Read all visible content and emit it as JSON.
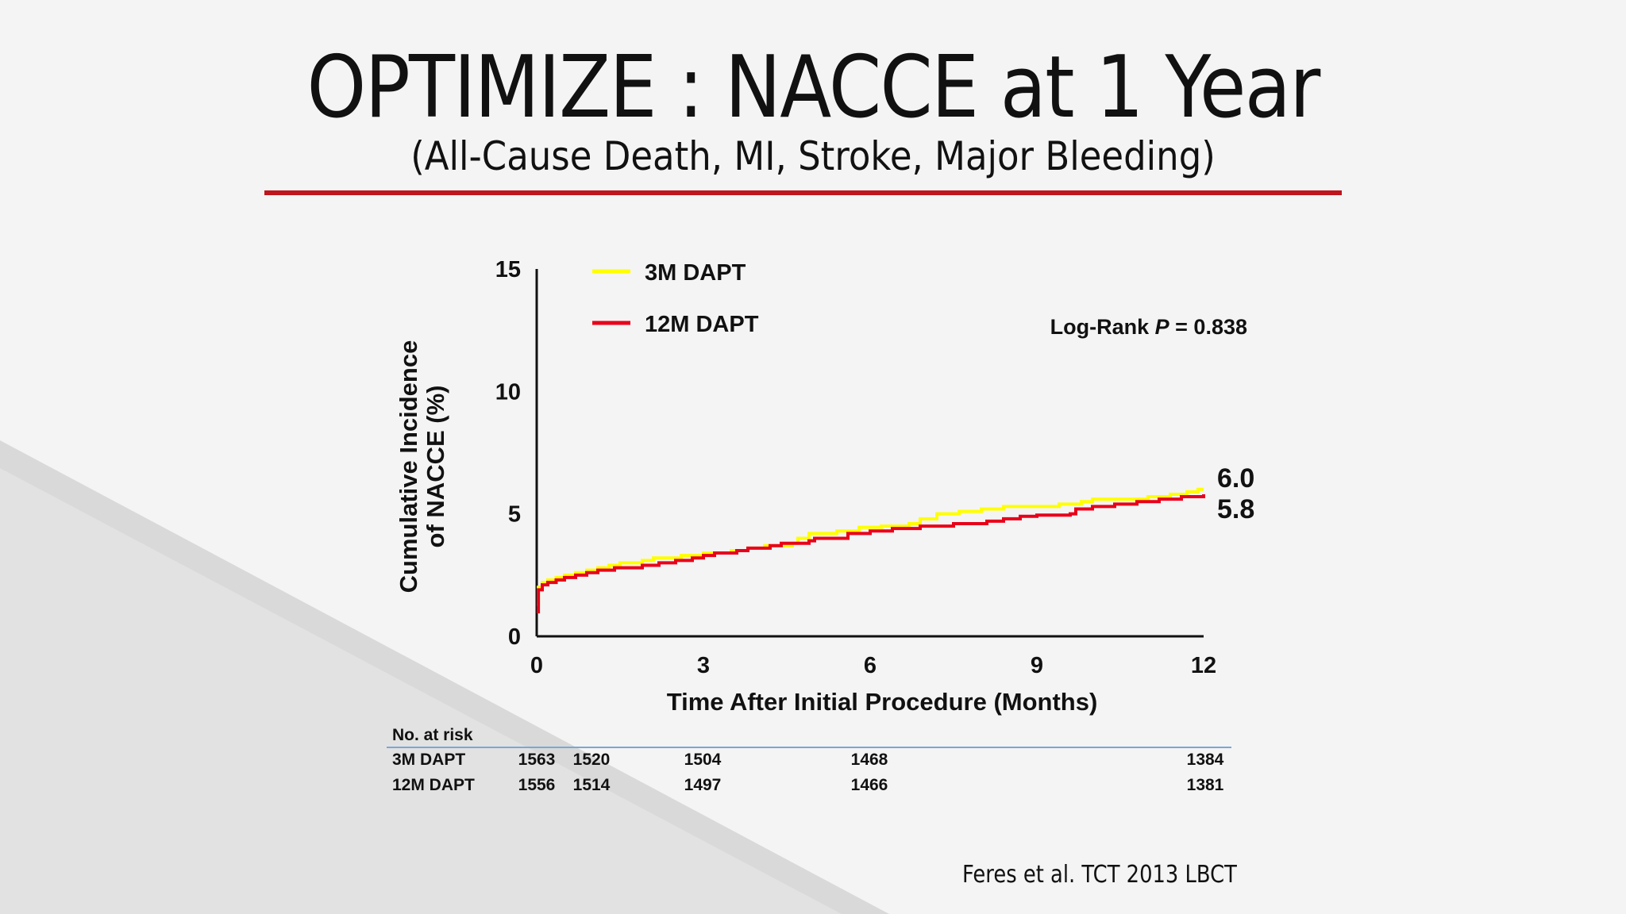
{
  "slide": {
    "title": "OPTIMIZE : NACCE at 1 Year",
    "subtitle": "(All-Cause Death, MI, Stroke, Major Bleeding)",
    "citation": "Feres et al. TCT 2013 LBCT"
  },
  "colors": {
    "accent_rule": "#c0151c",
    "series_3m": "#ffff00",
    "series_12m": "#e8001a"
  },
  "chart_data": {
    "type": "line",
    "xlabel": "Time After Initial Procedure (Months)",
    "ylabel_lines": [
      "Cumulative Incidence",
      "of NACCE (%)"
    ],
    "xlim": [
      0,
      12
    ],
    "ylim": [
      0,
      15
    ],
    "xticks": [
      "0",
      "3",
      "6",
      "9",
      "12"
    ],
    "yticks": [
      "0",
      "5",
      "10",
      "15"
    ],
    "annotation": {
      "prefix": "Log-Rank ",
      "p_label": "P",
      "suffix": " = 0.838"
    },
    "legend_position": "top-left",
    "end_labels": [
      "6.0",
      "5.8"
    ],
    "series": [
      {
        "name": "3M DAPT",
        "color": "#ffff00",
        "step": true,
        "points": [
          [
            0,
            1.3
          ],
          [
            0.03,
            2.0
          ],
          [
            0.1,
            2.2
          ],
          [
            0.2,
            2.3
          ],
          [
            0.35,
            2.4
          ],
          [
            0.5,
            2.5
          ],
          [
            0.7,
            2.6
          ],
          [
            0.9,
            2.7
          ],
          [
            1.1,
            2.8
          ],
          [
            1.3,
            2.9
          ],
          [
            1.5,
            3.0
          ],
          [
            1.9,
            3.1
          ],
          [
            2.1,
            3.2
          ],
          [
            2.6,
            3.3
          ],
          [
            3.0,
            3.4
          ],
          [
            3.5,
            3.5
          ],
          [
            3.8,
            3.6
          ],
          [
            4.1,
            3.7
          ],
          [
            4.6,
            3.8
          ],
          [
            4.7,
            4.0
          ],
          [
            4.9,
            4.2
          ],
          [
            5.4,
            4.3
          ],
          [
            5.8,
            4.45
          ],
          [
            6.2,
            4.5
          ],
          [
            6.7,
            4.6
          ],
          [
            6.9,
            4.8
          ],
          [
            7.2,
            5.0
          ],
          [
            7.6,
            5.1
          ],
          [
            8.0,
            5.2
          ],
          [
            8.4,
            5.3
          ],
          [
            9.4,
            5.4
          ],
          [
            9.8,
            5.5
          ],
          [
            10.0,
            5.6
          ],
          [
            11.0,
            5.7
          ],
          [
            11.4,
            5.8
          ],
          [
            11.7,
            5.9
          ],
          [
            11.9,
            6.0
          ],
          [
            12,
            6.0
          ]
        ]
      },
      {
        "name": "12M DAPT",
        "color": "#e8001a",
        "step": true,
        "points": [
          [
            0,
            1.0
          ],
          [
            0.03,
            1.9
          ],
          [
            0.1,
            2.1
          ],
          [
            0.2,
            2.2
          ],
          [
            0.35,
            2.3
          ],
          [
            0.5,
            2.4
          ],
          [
            0.7,
            2.5
          ],
          [
            0.9,
            2.6
          ],
          [
            1.1,
            2.7
          ],
          [
            1.4,
            2.8
          ],
          [
            1.9,
            2.9
          ],
          [
            2.2,
            3.0
          ],
          [
            2.5,
            3.1
          ],
          [
            2.8,
            3.2
          ],
          [
            3.0,
            3.3
          ],
          [
            3.2,
            3.4
          ],
          [
            3.6,
            3.5
          ],
          [
            3.8,
            3.6
          ],
          [
            4.2,
            3.7
          ],
          [
            4.4,
            3.8
          ],
          [
            4.9,
            3.9
          ],
          [
            5.0,
            4.0
          ],
          [
            5.6,
            4.2
          ],
          [
            6.0,
            4.3
          ],
          [
            6.4,
            4.4
          ],
          [
            6.9,
            4.5
          ],
          [
            7.5,
            4.6
          ],
          [
            8.1,
            4.7
          ],
          [
            8.4,
            4.8
          ],
          [
            8.7,
            4.9
          ],
          [
            9.0,
            4.95
          ],
          [
            9.6,
            5.0
          ],
          [
            9.7,
            5.2
          ],
          [
            10.0,
            5.3
          ],
          [
            10.4,
            5.4
          ],
          [
            10.8,
            5.5
          ],
          [
            11.2,
            5.6
          ],
          [
            11.6,
            5.7
          ],
          [
            12,
            5.8
          ]
        ]
      }
    ]
  },
  "risk_table": {
    "header": "No. at risk",
    "timepoints": [
      0,
      0.6,
      3,
      6,
      12
    ],
    "rows": [
      {
        "name": "3M DAPT",
        "values": [
          "1563",
          "1520",
          "1504",
          "1468",
          "1384"
        ]
      },
      {
        "name": "12M  DAPT",
        "values": [
          "1556",
          "1514",
          "1497",
          "1466",
          "1381"
        ]
      }
    ]
  }
}
